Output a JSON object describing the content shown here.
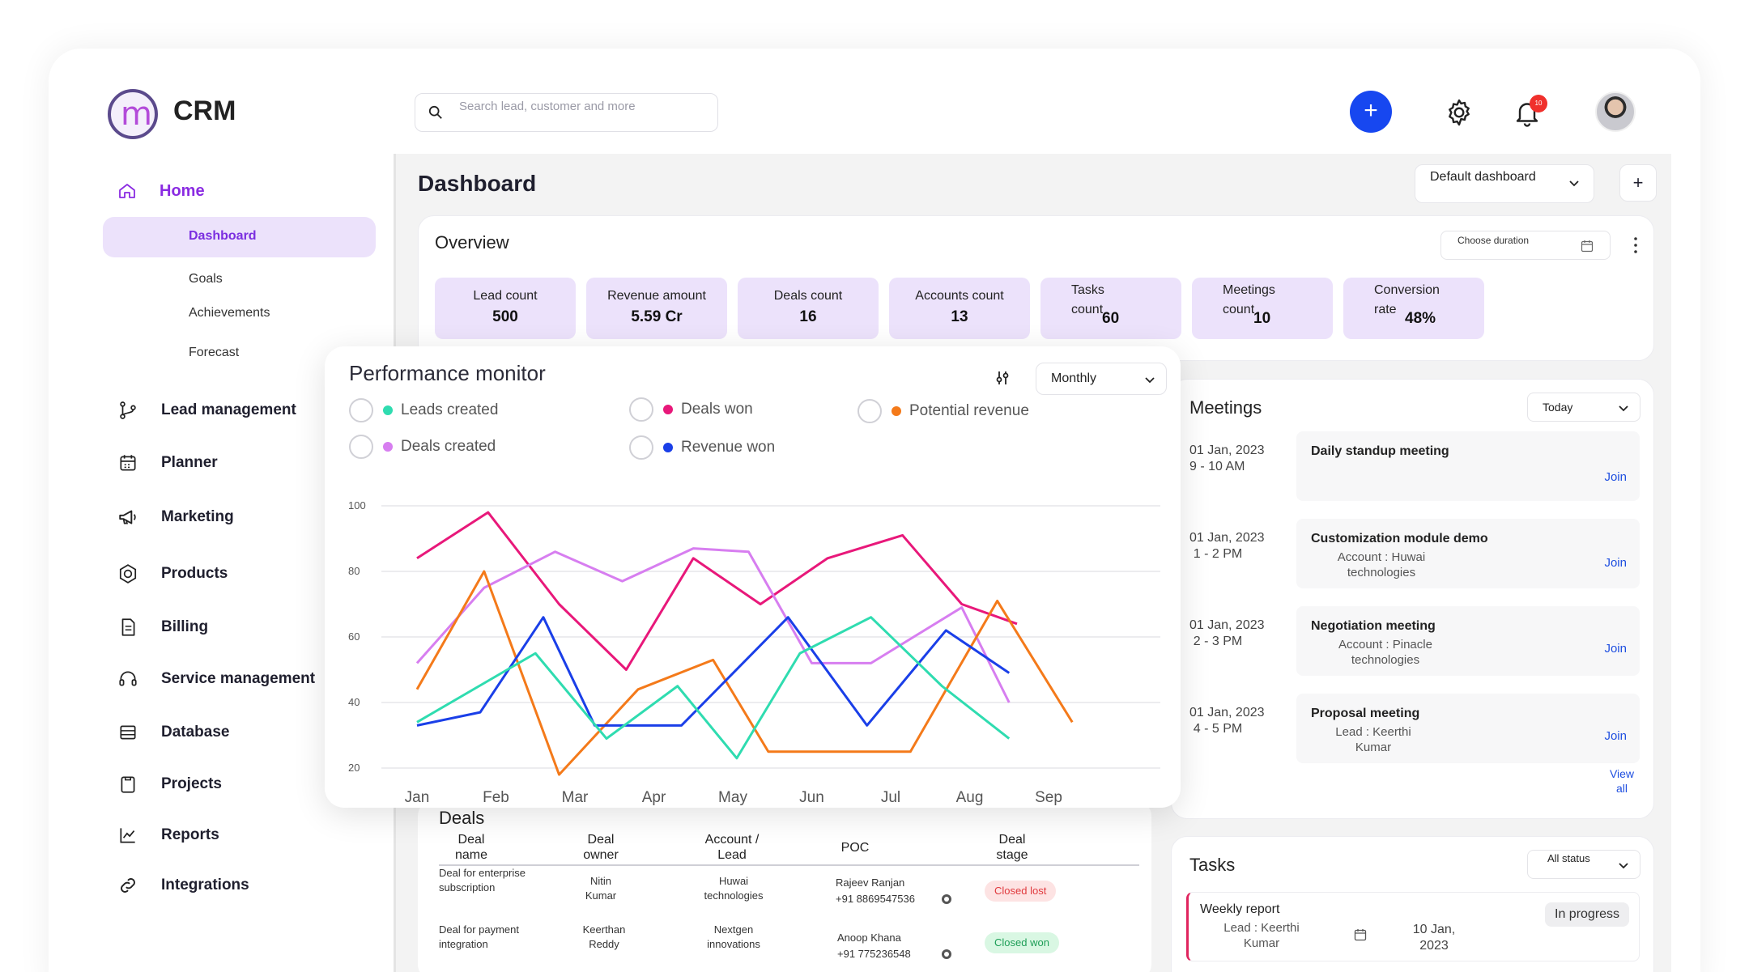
{
  "app": {
    "brand": "CRM"
  },
  "search": {
    "placeholder": "Search lead, customer and more"
  },
  "header": {
    "notification_count": "10"
  },
  "sidebar": {
    "home": "Home",
    "sub_items": [
      "Dashboard",
      "Goals",
      "Achievements",
      "Forecast"
    ],
    "items": [
      {
        "label": "Lead management",
        "icon": "git-branch-icon"
      },
      {
        "label": "Planner",
        "icon": "calendar-icon"
      },
      {
        "label": "Marketing",
        "icon": "megaphone-icon"
      },
      {
        "label": "Products",
        "icon": "hexagon-icon"
      },
      {
        "label": "Billing",
        "icon": "document-icon"
      },
      {
        "label": "Service management",
        "icon": "headset-icon"
      },
      {
        "label": "Database",
        "icon": "database-icon"
      },
      {
        "label": "Projects",
        "icon": "clipboard-icon"
      },
      {
        "label": "Reports",
        "icon": "line-chart-icon"
      },
      {
        "label": "Integrations",
        "icon": "link-icon"
      }
    ]
  },
  "main": {
    "title": "Dashboard",
    "dashboard_select": "Default dashboard",
    "add_label": "+"
  },
  "overview": {
    "title": "Overview",
    "duration_placeholder": "Choose duration",
    "kpis": [
      {
        "label": "Lead count",
        "value": "500"
      },
      {
        "label": "Revenue amount",
        "value": "5.59 Cr"
      },
      {
        "label": "Deals count",
        "value": "16"
      },
      {
        "label": "Accounts count",
        "value": "13"
      },
      {
        "label": "Tasks count",
        "value": "60"
      },
      {
        "label": "Meetings count",
        "value": "10"
      },
      {
        "label": "Conversion rate",
        "value": "48%"
      }
    ]
  },
  "performance": {
    "title": "Performance monitor",
    "period": "Monthly",
    "legend": [
      {
        "label": "Leads created",
        "color": "#2fdcb0"
      },
      {
        "label": "Deals won",
        "color": "#e8187a"
      },
      {
        "label": "Potential revenue",
        "color": "#f47a1a"
      },
      {
        "label": "Deals created",
        "color": "#d77ef0"
      },
      {
        "label": "Revenue won",
        "color": "#1a3fe8"
      }
    ]
  },
  "chart_data": {
    "type": "line",
    "categories": [
      "Jan",
      "Feb",
      "Mar",
      "Apr",
      "May",
      "Jun",
      "Jul",
      "Aug",
      "Sep"
    ],
    "y_ticks": [
      100,
      80,
      60,
      40,
      20
    ],
    "ylim": [
      20,
      100
    ],
    "grid": true,
    "series": [
      {
        "name": "Deals won",
        "color": "#e8187a",
        "x": [
          0,
          0.9,
          1.8,
          2.65,
          3.5,
          4.35,
          5.2,
          6.15,
          6.9,
          7.6
        ],
        "values": [
          84,
          98,
          70,
          50,
          84,
          70,
          84,
          91,
          70,
          64
        ]
      },
      {
        "name": "Deals created",
        "color": "#d77ef0",
        "x": [
          0,
          0.85,
          1.75,
          2.6,
          3.5,
          4.2,
          5.0,
          5.75,
          6.9,
          7.5
        ],
        "values": [
          52,
          75,
          86,
          77,
          87,
          86,
          52,
          52,
          69,
          40
        ]
      },
      {
        "name": "Potential revenue",
        "color": "#f47a1a",
        "x": [
          0,
          0.85,
          1.8,
          2.8,
          3.75,
          4.45,
          5.25,
          6.25,
          7.35,
          8.3
        ],
        "values": [
          44,
          80,
          18,
          44,
          53,
          25,
          25,
          25,
          71,
          34
        ]
      },
      {
        "name": "Revenue won",
        "color": "#1a3fe8",
        "x": [
          0,
          0.8,
          1.6,
          2.25,
          3.35,
          4.7,
          5.7,
          6.7,
          7.5
        ],
        "values": [
          33,
          37,
          66,
          33,
          33,
          66,
          33,
          62,
          49
        ]
      },
      {
        "name": "Leads created",
        "color": "#2fdcb0",
        "x": [
          0,
          1.5,
          2.4,
          3.3,
          4.05,
          4.85,
          5.75,
          6.65,
          7.5
        ],
        "values": [
          34,
          55,
          29,
          45,
          23,
          55,
          66,
          45,
          29
        ]
      }
    ]
  },
  "deals": {
    "title": "Deals",
    "headers": [
      "Deal name",
      "Deal owner",
      "Account / Lead",
      "POC",
      "Deal stage"
    ],
    "rows": [
      {
        "name": "Deal for enterprise subscription",
        "owner": "Nitin Kumar",
        "account": "Huwai technologies",
        "poc_name": "Rajeev Ranjan",
        "poc_phone": "+91 8869547536",
        "stage": "Closed lost"
      },
      {
        "name": "Deal for payment integration",
        "owner": "Keerthan Reddy",
        "account": "Nextgen innovations",
        "poc_name": "Anoop Khana",
        "poc_phone": "+91 775236548",
        "stage": "Closed won"
      }
    ]
  },
  "meetings": {
    "title": "Meetings",
    "filter": "Today",
    "view_all": "View all",
    "join_label": "Join",
    "items": [
      {
        "date": "01 Jan, 2023",
        "time": "9 - 10 AM",
        "title": "Daily standup meeting",
        "sub": ""
      },
      {
        "date": "01 Jan, 2023",
        "time": "1 - 2 PM",
        "title": "Customization module demo",
        "sub": "Account : Huwai technologies"
      },
      {
        "date": "01 Jan, 2023",
        "time": "2 - 3 PM",
        "title": "Negotiation meeting",
        "sub": "Account : Pinacle technologies"
      },
      {
        "date": "01 Jan, 2023",
        "time": "4 - 5 PM",
        "title": "Proposal meeting",
        "sub": "Lead : Keerthi Kumar"
      }
    ]
  },
  "tasks": {
    "title": "Tasks",
    "filter": "All status",
    "items": [
      {
        "title": "Weekly report",
        "sub": "Lead : Keerthi Kumar",
        "date": "10 Jan, 2023",
        "status": "In progress"
      }
    ]
  }
}
